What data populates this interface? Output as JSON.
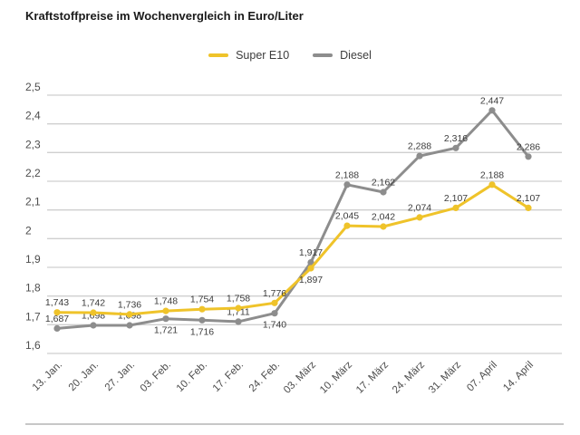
{
  "title": "Kraftstoffpreise im Wochenvergleich in Euro/Liter",
  "legend": [
    {
      "label": "Super E10",
      "color": "#efc32a"
    },
    {
      "label": "Diesel",
      "color": "#8d8d8d"
    }
  ],
  "colors": {
    "grid": "#cfcfcf",
    "axis_text": "#4d4d4d",
    "data_label": "#3c3c3c",
    "divider": "#c7c7c7"
  },
  "chart_data": {
    "type": "line",
    "title": "Kraftstoffpreise im Wochenvergleich in Euro/Liter",
    "xlabel": "",
    "ylabel": "Euro/Liter",
    "ylim": [
      1.6,
      2.5
    ],
    "grid": true,
    "legend_position": "top-center",
    "ytick_labels_top_to_bottom": [
      "2,5",
      "2,4",
      "2,3",
      "2,2",
      "2,1",
      "2",
      "1,9",
      "1,8",
      "1,7",
      "1,6"
    ],
    "categories": [
      "13. Jan.",
      "20. Jan.",
      "27. Jan.",
      "03. Feb.",
      "10. Feb.",
      "17. Feb.",
      "24. Feb.",
      "03. März",
      "10. März",
      "17. März",
      "24. März",
      "31. März",
      "07. April",
      "14. April"
    ],
    "series": [
      {
        "name": "Diesel",
        "color": "#8d8d8d",
        "values": [
          1.687,
          1.698,
          1.698,
          1.721,
          1.716,
          1.711,
          1.74,
          1.917,
          2.188,
          2.162,
          2.288,
          2.316,
          2.447,
          2.286
        ],
        "labels": [
          "1,687",
          "1,698",
          "1,698",
          "1,721",
          "1,716",
          "1,711",
          "1,740",
          "1,917",
          "2,188",
          "2,162",
          "2,288",
          "2,316",
          "2,447",
          "2,286"
        ],
        "label_pos": [
          "above",
          "above",
          "above",
          "below",
          "below",
          "above",
          "below",
          "above",
          "above",
          "above",
          "above",
          "above",
          "above",
          "above"
        ]
      },
      {
        "name": "Super E10",
        "color": "#efc32a",
        "values": [
          1.743,
          1.742,
          1.736,
          1.748,
          1.754,
          1.758,
          1.776,
          1.897,
          2.045,
          2.042,
          2.074,
          2.107,
          2.188,
          2.107
        ],
        "labels": [
          "1,743",
          "1,742",
          "1,736",
          "1,748",
          "1,754",
          "1,758",
          "1,776",
          "1,897",
          "2,045",
          "2,042",
          "2,074",
          "2,107",
          "2,188",
          "2,107"
        ],
        "label_pos": [
          "above",
          "above",
          "above",
          "above",
          "above",
          "above",
          "above",
          "below",
          "above",
          "above",
          "above",
          "above",
          "above",
          "above"
        ]
      }
    ]
  }
}
